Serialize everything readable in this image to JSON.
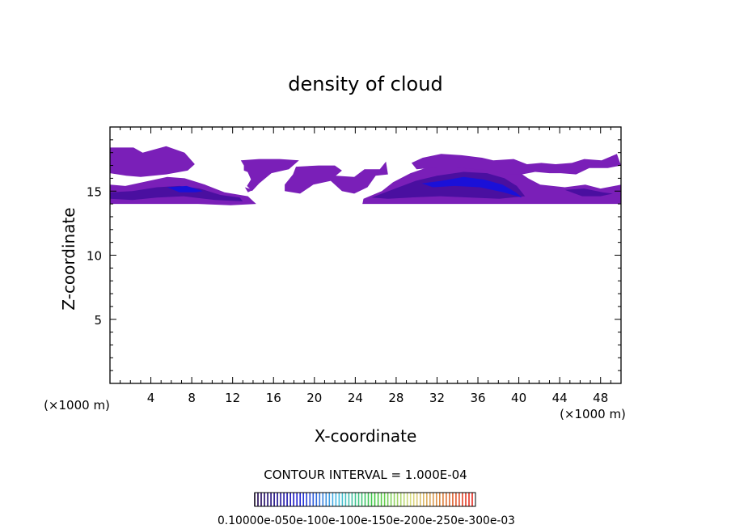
{
  "chart_data": {
    "type": "heatmap",
    "title": "density of cloud",
    "xlabel": "X-coordinate",
    "ylabel": "Z-coordinate",
    "x_unit_left": "(×1000 m)",
    "x_unit_right": "(×1000 m)",
    "xlim": [
      0,
      50
    ],
    "ylim": [
      0,
      20
    ],
    "x_ticks": [
      4,
      8,
      12,
      16,
      20,
      24,
      28,
      32,
      36,
      40,
      44,
      48
    ],
    "x_tick_labels": [
      "4",
      "8",
      "12",
      "16",
      "20",
      "24",
      "28",
      "32",
      "36",
      "40",
      "44",
      "48"
    ],
    "y_ticks": [
      5,
      10,
      15
    ],
    "y_tick_labels": [
      "5",
      "10",
      "15"
    ],
    "contour_interval": "CONTOUR INTERVAL = 1.000E-04",
    "colorbar_labels_text": "0.10000e-050e-100e-100e-150e-200e-250e-300e-03",
    "colors": {
      "background": "#ffffff",
      "axes": "#000000",
      "low": "#7a1fb8",
      "mid": "#4a0fa0",
      "high": "#1a10d8"
    },
    "regions": [
      {
        "name": "cloud-region-left-upper",
        "level": "low",
        "points": [
          [
            0,
            18.4
          ],
          [
            2.3,
            18.4
          ],
          [
            3.2,
            18.0
          ],
          [
            5.5,
            18.5
          ],
          [
            7.3,
            18.0
          ],
          [
            8.3,
            17.1
          ],
          [
            7.6,
            16.6
          ],
          [
            5.5,
            16.3
          ],
          [
            3.0,
            16.1
          ],
          [
            1.6,
            16.2
          ],
          [
            0,
            16.4
          ]
        ]
      },
      {
        "name": "cloud-region-left-lower",
        "level": "low",
        "points": [
          [
            0,
            15.5
          ],
          [
            1.5,
            15.4
          ],
          [
            3.8,
            15.8
          ],
          [
            5.6,
            16.1
          ],
          [
            7.3,
            16.0
          ],
          [
            9.3,
            15.5
          ],
          [
            11.2,
            14.9
          ],
          [
            13.5,
            14.6
          ],
          [
            14.3,
            14.0
          ],
          [
            11.8,
            13.9
          ],
          [
            8.6,
            14.0
          ],
          [
            5.0,
            14.0
          ],
          [
            2.2,
            14.0
          ],
          [
            0,
            14.0
          ]
        ]
      },
      {
        "name": "cloud-region-left-core",
        "level": "mid",
        "points": [
          [
            0,
            14.9
          ],
          [
            2.2,
            15.0
          ],
          [
            4.6,
            15.3
          ],
          [
            6.8,
            15.4
          ],
          [
            8.8,
            15.2
          ],
          [
            10.8,
            14.7
          ],
          [
            12.7,
            14.5
          ],
          [
            13.0,
            14.2
          ],
          [
            10.3,
            14.3
          ],
          [
            7.2,
            14.6
          ],
          [
            4.6,
            14.5
          ],
          [
            2.2,
            14.3
          ],
          [
            0,
            14.4
          ]
        ]
      },
      {
        "name": "cloud-region-left-high",
        "level": "high",
        "points": [
          [
            5.6,
            15.3
          ],
          [
            7.5,
            15.4
          ],
          [
            9.1,
            15.0
          ],
          [
            8.4,
            14.9
          ],
          [
            6.8,
            14.9
          ]
        ]
      },
      {
        "name": "cloud-region-fragment-a",
        "level": "low",
        "points": [
          [
            13.3,
            16.8
          ],
          [
            14.9,
            16.5
          ],
          [
            15.4,
            16.2
          ],
          [
            13.8,
            15.9
          ]
        ]
      },
      {
        "name": "cloud-region-fragment-b",
        "level": "low",
        "points": [
          [
            13.2,
            15.3
          ],
          [
            14.0,
            15.1
          ],
          [
            13.5,
            14.9
          ]
        ]
      },
      {
        "name": "cloud-region-mid-left",
        "level": "low",
        "points": [
          [
            12.8,
            17.4
          ],
          [
            14.6,
            17.5
          ],
          [
            16.6,
            17.5
          ],
          [
            18.5,
            17.4
          ],
          [
            17.5,
            16.7
          ],
          [
            15.8,
            16.4
          ],
          [
            14.6,
            15.6
          ],
          [
            13.9,
            15.0
          ],
          [
            13.4,
            15.4
          ],
          [
            14.1,
            16.3
          ],
          [
            13.1,
            16.6
          ],
          [
            13.1,
            17.0
          ]
        ]
      },
      {
        "name": "cloud-region-mid-center",
        "level": "low",
        "points": [
          [
            18.2,
            16.9
          ],
          [
            20.4,
            17.0
          ],
          [
            22.0,
            17.0
          ],
          [
            22.7,
            16.6
          ],
          [
            22.1,
            16.2
          ],
          [
            23.9,
            16.1
          ],
          [
            24.9,
            16.7
          ],
          [
            26.4,
            16.7
          ],
          [
            27.0,
            17.3
          ],
          [
            27.2,
            16.3
          ],
          [
            26.0,
            16.2
          ],
          [
            25.2,
            15.3
          ],
          [
            23.9,
            14.8
          ],
          [
            22.7,
            15.0
          ],
          [
            21.6,
            15.8
          ],
          [
            19.9,
            15.5
          ],
          [
            18.6,
            14.8
          ],
          [
            17.1,
            15.0
          ],
          [
            17.1,
            15.5
          ],
          [
            17.9,
            16.3
          ]
        ]
      },
      {
        "name": "cloud-region-right-main",
        "level": "low",
        "points": [
          [
            24.8,
            14.4
          ],
          [
            26.6,
            15.0
          ],
          [
            27.7,
            15.7
          ],
          [
            29.4,
            16.4
          ],
          [
            31.6,
            17.0
          ],
          [
            34.2,
            17.3
          ],
          [
            36.5,
            17.1
          ],
          [
            38.5,
            16.9
          ],
          [
            39.6,
            16.7
          ],
          [
            40.9,
            16.0
          ],
          [
            42.1,
            15.5
          ],
          [
            44.5,
            15.3
          ],
          [
            46.5,
            15.5
          ],
          [
            48.0,
            15.2
          ],
          [
            50.0,
            15.5
          ],
          [
            50.0,
            14.0
          ],
          [
            46.8,
            14.0
          ],
          [
            43.6,
            14.0
          ],
          [
            40.9,
            14.0
          ],
          [
            37.0,
            14.0
          ],
          [
            33.5,
            14.0
          ],
          [
            29.6,
            14.0
          ],
          [
            26.5,
            14.0
          ],
          [
            24.7,
            14.0
          ]
        ]
      },
      {
        "name": "cloud-region-right-top",
        "level": "low",
        "points": [
          [
            29.5,
            17.2
          ],
          [
            30.6,
            17.6
          ],
          [
            32.4,
            17.9
          ],
          [
            34.4,
            17.8
          ],
          [
            36.4,
            17.6
          ],
          [
            37.5,
            17.4
          ],
          [
            39.5,
            17.5
          ],
          [
            40.8,
            17.1
          ],
          [
            42.2,
            17.2
          ],
          [
            43.6,
            17.1
          ],
          [
            45.2,
            17.2
          ],
          [
            46.4,
            17.5
          ],
          [
            48.1,
            17.4
          ],
          [
            49.6,
            17.9
          ],
          [
            50.0,
            17.0
          ],
          [
            48.7,
            16.8
          ],
          [
            46.9,
            16.8
          ],
          [
            45.6,
            16.3
          ],
          [
            44.1,
            16.4
          ],
          [
            43.0,
            16.4
          ],
          [
            41.6,
            16.5
          ],
          [
            40.3,
            16.3
          ],
          [
            39.0,
            16.3
          ],
          [
            37.4,
            16.6
          ],
          [
            35.8,
            16.7
          ],
          [
            33.2,
            16.9
          ],
          [
            31.3,
            16.8
          ],
          [
            30.0,
            16.7
          ]
        ]
      },
      {
        "name": "cloud-region-right-core",
        "level": "mid",
        "points": [
          [
            25.6,
            14.5
          ],
          [
            27.9,
            15.2
          ],
          [
            29.9,
            15.8
          ],
          [
            32.0,
            16.2
          ],
          [
            34.6,
            16.5
          ],
          [
            36.9,
            16.4
          ],
          [
            38.6,
            16.0
          ],
          [
            39.8,
            15.4
          ],
          [
            40.6,
            14.6
          ],
          [
            38.1,
            14.4
          ],
          [
            35.3,
            14.5
          ],
          [
            32.3,
            14.6
          ],
          [
            29.4,
            14.5
          ],
          [
            27.2,
            14.4
          ]
        ]
      },
      {
        "name": "cloud-region-right-high",
        "level": "high",
        "points": [
          [
            30.5,
            15.6
          ],
          [
            32.4,
            15.8
          ],
          [
            34.6,
            16.1
          ],
          [
            36.6,
            15.9
          ],
          [
            38.4,
            15.5
          ],
          [
            39.7,
            14.9
          ],
          [
            40.3,
            14.5
          ],
          [
            38.5,
            14.9
          ],
          [
            36.2,
            15.3
          ],
          [
            33.7,
            15.4
          ],
          [
            31.6,
            15.3
          ]
        ]
      },
      {
        "name": "cloud-region-far-right-core",
        "level": "mid",
        "points": [
          [
            44.5,
            15.1
          ],
          [
            46.4,
            15.2
          ],
          [
            48.2,
            14.9
          ],
          [
            49.2,
            14.8
          ],
          [
            48.0,
            14.6
          ],
          [
            46.2,
            14.6
          ]
        ]
      }
    ],
    "grid": false,
    "legend": "bottom"
  }
}
